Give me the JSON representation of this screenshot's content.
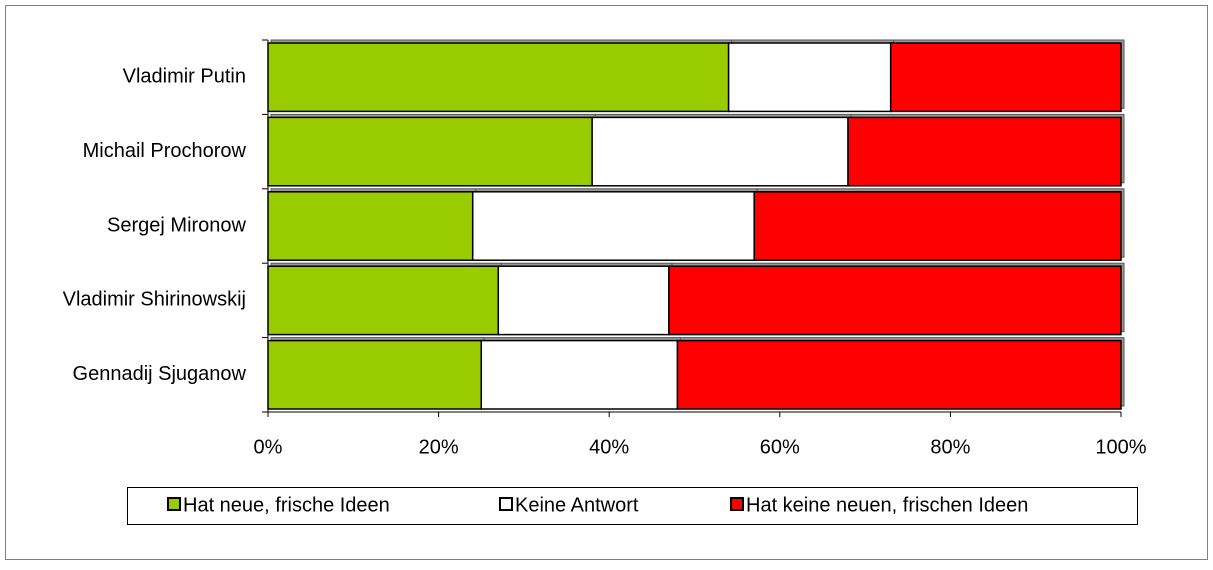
{
  "chart_data": {
    "type": "stacked-bar-horizontal",
    "categories": [
      "Vladimir Putin",
      "Michail Prochorow",
      "Sergej Mironow",
      "Vladimir Shirinowskij",
      "Gennadij Sjuganow"
    ],
    "series": [
      {
        "name": "Hat neue, frische Ideen",
        "color": "#99cc00",
        "values": [
          54,
          38,
          24,
          27,
          25
        ]
      },
      {
        "name": "Keine Antwort",
        "color": "#ffffff",
        "values": [
          19,
          30,
          33,
          20,
          23
        ]
      },
      {
        "name": "Hat keine neuen, frischen Ideen",
        "color": "#ff0000",
        "values": [
          27,
          32,
          43,
          53,
          52
        ]
      }
    ],
    "xlim": [
      0,
      100
    ],
    "xticks": [
      {
        "value": 0,
        "label": "0%"
      },
      {
        "value": 20,
        "label": "20%"
      },
      {
        "value": 40,
        "label": "40%"
      },
      {
        "value": 60,
        "label": "60%"
      },
      {
        "value": 80,
        "label": "80%"
      },
      {
        "value": 100,
        "label": "100%"
      }
    ],
    "legend": "bottom"
  }
}
